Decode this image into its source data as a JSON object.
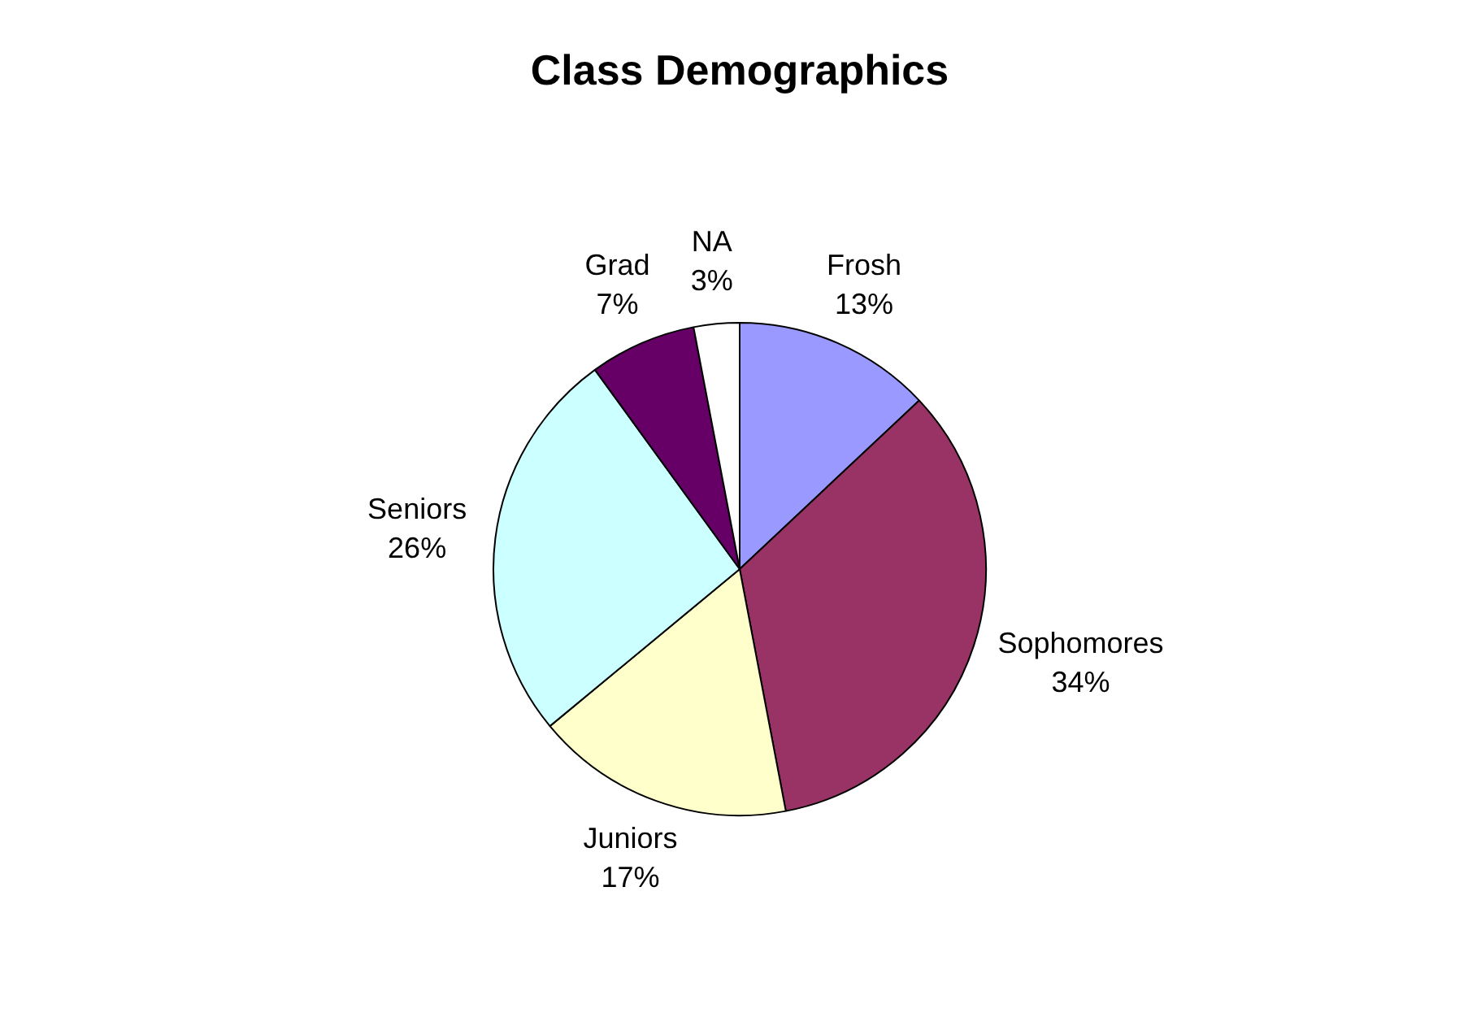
{
  "chart_data": {
    "type": "pie",
    "title": "Class Demographics",
    "categories": [
      "Frosh",
      "Sophomores",
      "Juniors",
      "Seniors",
      "Grad",
      "NA"
    ],
    "values": [
      13,
      34,
      17,
      26,
      7,
      3
    ],
    "colors": [
      "#9999ff",
      "#993366",
      "#ffffcc",
      "#ccffff",
      "#660066",
      "#ffffff"
    ],
    "value_labels": [
      "13%",
      "34%",
      "17%",
      "26%",
      "7%",
      "3%"
    ],
    "legend": false
  }
}
